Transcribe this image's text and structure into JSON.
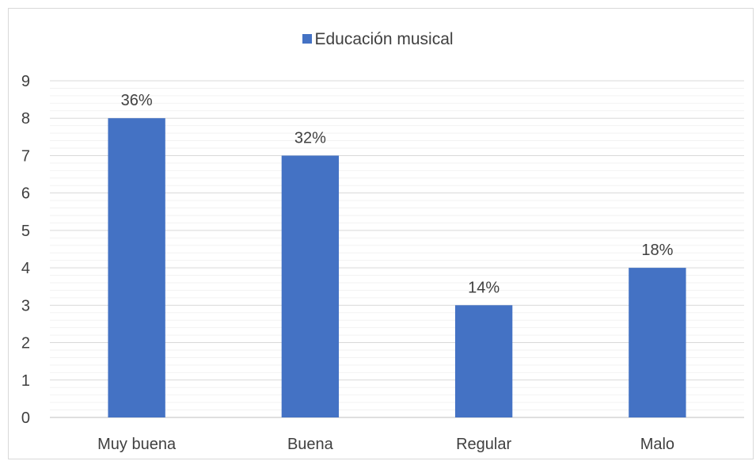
{
  "chart_data": {
    "type": "bar",
    "categories": [
      "Muy buena",
      "Buena",
      "Regular",
      "Malo"
    ],
    "series": [
      {
        "name": "Educación musical",
        "values": [
          8,
          7,
          3,
          4
        ],
        "data_labels": [
          "36%",
          "32%",
          "14%",
          "18%"
        ]
      }
    ],
    "y_ticks": [
      "0",
      "1",
      "2",
      "3",
      "4",
      "5",
      "6",
      "7",
      "8",
      "9"
    ],
    "ylim": [
      0,
      9
    ],
    "grid": true,
    "minor_grid": true,
    "legend_position": "top",
    "bar_color": "#4472c4"
  }
}
